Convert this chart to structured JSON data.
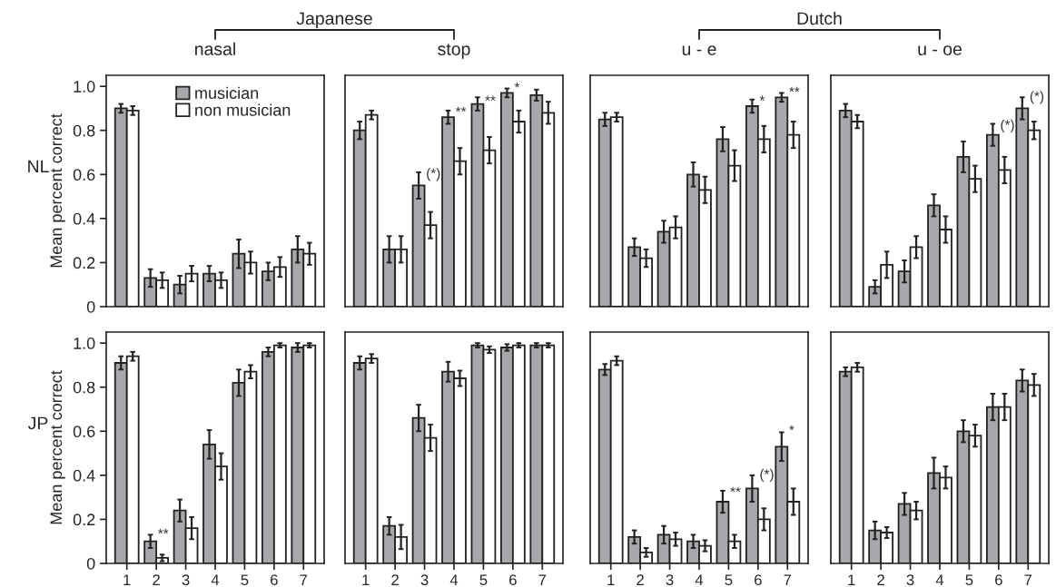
{
  "chart_data": [
    {
      "type": "bar",
      "title": "nasal",
      "ylabel": "Mean percent correct",
      "categories": [
        "1",
        "2",
        "3",
        "4",
        "5",
        "6",
        "7"
      ],
      "ylim": [
        0,
        1.05
      ],
      "yticks": [
        0,
        0.2,
        0.4,
        0.6,
        0.8,
        {
          "value": 1.0,
          "label": "1.0"
        }
      ],
      "tick_labels": "y",
      "legend": "top right",
      "series": [
        {
          "name": "musician",
          "color": "#a7a8ab",
          "values": [
            0.9,
            0.13,
            0.1,
            0.15,
            0.24,
            0.16,
            0.26
          ],
          "errors": [
            0.02,
            0.04,
            0.04,
            0.035,
            0.065,
            0.04,
            0.06
          ]
        },
        {
          "name": "non musician",
          "color": "#ffffff",
          "values": [
            0.89,
            0.12,
            0.15,
            0.12,
            0.2,
            0.18,
            0.24
          ],
          "errors": [
            0.02,
            0.035,
            0.035,
            0.035,
            0.05,
            0.045,
            0.05
          ]
        }
      ],
      "annotations": [
        "Japanese",
        "NL"
      ]
    },
    {
      "type": "bar",
      "title": "stop",
      "categories": [
        "1",
        "2",
        "3",
        "4",
        "5",
        "6",
        "7"
      ],
      "ylim": [
        0,
        1.05
      ],
      "tick_labels": false,
      "series": [
        {
          "color": "#a7a8ab",
          "values": [
            0.8,
            0.26,
            0.55,
            0.86,
            0.92,
            0.97,
            0.96
          ],
          "errors": [
            0.04,
            0.06,
            0.06,
            0.03,
            0.03,
            0.02,
            0.025
          ]
        },
        {
          "color": "#ffffff",
          "values": [
            0.87,
            0.26,
            0.37,
            0.66,
            0.71,
            0.84,
            0.88
          ],
          "errors": [
            0.02,
            0.06,
            0.06,
            0.06,
            0.06,
            0.05,
            0.05
          ]
        }
      ],
      "annotations": [
        {
          "text": "(*)",
          "x": "3",
          "y": 0.6
        },
        {
          "text": "**",
          "x": "4",
          "y": 0.88
        },
        {
          "text": "**",
          "x": "5",
          "y": 0.93
        },
        {
          "text": "*",
          "x": "6",
          "y": 0.99
        }
      ]
    },
    {
      "type": "bar",
      "title": "u - e",
      "categories": [
        "1",
        "2",
        "3",
        "4",
        "5",
        "6",
        "7"
      ],
      "ylim": [
        0,
        1.05
      ],
      "tick_labels": false,
      "series": [
        {
          "color": "#a7a8ab",
          "values": [
            0.85,
            0.27,
            0.34,
            0.6,
            0.76,
            0.91,
            0.95
          ],
          "errors": [
            0.03,
            0.04,
            0.05,
            0.055,
            0.055,
            0.03,
            0.02
          ]
        },
        {
          "color": "#ffffff",
          "values": [
            0.86,
            0.22,
            0.36,
            0.53,
            0.64,
            0.76,
            0.78
          ],
          "errors": [
            0.02,
            0.04,
            0.05,
            0.06,
            0.07,
            0.06,
            0.06
          ]
        }
      ],
      "annotations": [
        "Dutch",
        {
          "text": "*",
          "x": "6",
          "y": 0.93
        },
        {
          "text": "**",
          "x": "7",
          "y": 0.97
        }
      ]
    },
    {
      "type": "bar",
      "title": "u - oe",
      "categories": [
        "1",
        "2",
        "3",
        "4",
        "5",
        "6",
        "7"
      ],
      "ylim": [
        0,
        1.05
      ],
      "tick_labels": false,
      "series": [
        {
          "color": "#a7a8ab",
          "values": [
            0.89,
            0.09,
            0.16,
            0.46,
            0.68,
            0.78,
            0.9
          ],
          "errors": [
            0.03,
            0.03,
            0.05,
            0.05,
            0.07,
            0.05,
            0.05
          ]
        },
        {
          "color": "#ffffff",
          "values": [
            0.84,
            0.19,
            0.27,
            0.35,
            0.58,
            0.62,
            0.8
          ],
          "errors": [
            0.03,
            0.06,
            0.05,
            0.06,
            0.06,
            0.06,
            0.04
          ]
        }
      ],
      "annotations": [
        {
          "text": "(*)",
          "x": "6",
          "y": 0.82
        },
        {
          "text": "(*)",
          "x": "7",
          "y": 0.95
        }
      ]
    },
    {
      "type": "bar",
      "ylabel": "Mean percent correct",
      "categories": [
        "1",
        "2",
        "3",
        "4",
        "5",
        "6",
        "7"
      ],
      "ylim": [
        0,
        1.05
      ],
      "yticks": [
        0,
        0.2,
        0.4,
        0.6,
        0.8,
        {
          "value": 1.0,
          "label": "1.0"
        }
      ],
      "series": [
        {
          "color": "#a7a8ab",
          "values": [
            0.91,
            0.1,
            0.24,
            0.54,
            0.82,
            0.96,
            0.98
          ],
          "errors": [
            0.03,
            0.03,
            0.05,
            0.065,
            0.06,
            0.02,
            0.02
          ]
        },
        {
          "color": "#ffffff",
          "values": [
            0.94,
            0.025,
            0.16,
            0.44,
            0.87,
            0.99,
            0.99
          ],
          "errors": [
            0.02,
            0.015,
            0.05,
            0.06,
            0.03,
            0.01,
            0.01
          ]
        }
      ],
      "annotations": [
        "JP",
        {
          "text": "**",
          "x": "2",
          "y": 0.13
        }
      ]
    },
    {
      "type": "bar",
      "categories": [
        "1",
        "2",
        "3",
        "4",
        "5",
        "6",
        "7"
      ],
      "ylim": [
        0,
        1.05
      ],
      "tick_labels": "x",
      "series": [
        {
          "color": "#a7a8ab",
          "values": [
            0.91,
            0.17,
            0.66,
            0.87,
            0.99,
            0.98,
            0.99
          ],
          "errors": [
            0.03,
            0.04,
            0.06,
            0.045,
            0.01,
            0.015,
            0.01
          ]
        },
        {
          "color": "#ffffff",
          "values": [
            0.93,
            0.12,
            0.57,
            0.84,
            0.97,
            0.99,
            0.99
          ],
          "errors": [
            0.02,
            0.055,
            0.06,
            0.035,
            0.015,
            0.01,
            0.01
          ]
        }
      ]
    },
    {
      "type": "bar",
      "categories": [
        "1",
        "2",
        "3",
        "4",
        "5",
        "6",
        "7"
      ],
      "ylim": [
        0,
        1.05
      ],
      "tick_labels": "x",
      "series": [
        {
          "color": "#a7a8ab",
          "values": [
            0.88,
            0.12,
            0.13,
            0.1,
            0.28,
            0.34,
            0.53
          ],
          "errors": [
            0.025,
            0.03,
            0.04,
            0.03,
            0.05,
            0.06,
            0.065
          ]
        },
        {
          "color": "#ffffff",
          "values": [
            0.92,
            0.05,
            0.11,
            0.08,
            0.1,
            0.2,
            0.28
          ],
          "errors": [
            0.02,
            0.02,
            0.03,
            0.025,
            0.03,
            0.05,
            0.06
          ]
        }
      ],
      "annotations": [
        {
          "text": "**",
          "x": "5",
          "y": 0.32
        },
        {
          "text": "(*)",
          "x": "6",
          "y": 0.4
        },
        {
          "text": "*",
          "x": "7",
          "y": 0.6
        }
      ]
    },
    {
      "type": "bar",
      "categories": [
        "1",
        "2",
        "3",
        "4",
        "5",
        "6",
        "7"
      ],
      "ylim": [
        0,
        1.05
      ],
      "tick_labels": "x",
      "series": [
        {
          "color": "#a7a8ab",
          "values": [
            0.87,
            0.15,
            0.27,
            0.41,
            0.6,
            0.71,
            0.83
          ],
          "errors": [
            0.02,
            0.04,
            0.05,
            0.07,
            0.05,
            0.06,
            0.05
          ]
        },
        {
          "color": "#ffffff",
          "values": [
            0.89,
            0.14,
            0.24,
            0.39,
            0.58,
            0.71,
            0.81
          ],
          "errors": [
            0.02,
            0.025,
            0.04,
            0.05,
            0.05,
            0.06,
            0.05
          ]
        }
      ]
    }
  ]
}
